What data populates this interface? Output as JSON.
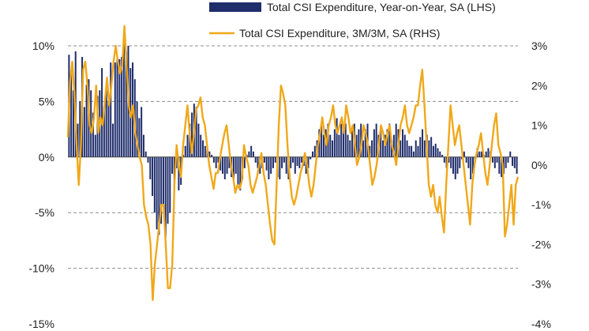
{
  "chart_data": {
    "type": "bar+line",
    "title": "",
    "xlabel": "",
    "ylabel_left": "",
    "ylabel_right": "",
    "ylim_left": [
      -15,
      10
    ],
    "yticks_left": [
      10,
      5,
      0,
      -5,
      -10,
      -15
    ],
    "ytick_labels_left": [
      "10%",
      "5%",
      "0%",
      "-5%",
      "-10%",
      "-15%"
    ],
    "ylim_right": [
      -4,
      3
    ],
    "yticks_right": [
      3,
      2,
      1,
      0,
      -1,
      -2,
      -3,
      -4
    ],
    "ytick_labels_right": [
      "3%",
      "2%",
      "1%",
      "0%",
      "-1%",
      "-2%",
      "-3%",
      "-4%"
    ],
    "grid": "horizontal dashed",
    "legend_position": "top",
    "series": [
      {
        "name": "Total CSI Expenditure, Year-on-Year, SA (LHS)",
        "type": "bar",
        "axis": "left",
        "color": "#1f2d6b",
        "values": [
          9.2,
          7.5,
          6.0,
          9.5,
          3.0,
          5.0,
          9.0,
          4.5,
          6.5,
          7.0,
          6.0,
          4.0,
          2.0,
          5.5,
          6.0,
          8.0,
          4.5,
          6.0,
          5.0,
          8.5,
          3.0,
          8.5,
          9.0,
          8.8,
          9.0,
          11.0,
          9.5,
          10.0,
          8.0,
          8.5,
          7.0,
          5.0,
          3.5,
          4.5,
          2.0,
          0.5,
          -0.5,
          -2.0,
          -3.5,
          -5.0,
          -6.5,
          -7.0,
          -6.0,
          -4.5,
          -7.2,
          -6.0,
          -5.0,
          -1.5,
          -3.0,
          -1.0,
          -3.0,
          -2.5,
          0.2,
          1.0,
          2.0,
          3.0,
          4.0,
          4.8,
          4.5,
          3.0,
          2.0,
          1.5,
          1.0,
          0.8,
          0.5,
          0.2,
          -0.5,
          -1.0,
          -0.5,
          -1.2,
          -1.5,
          -2.0,
          -1.5,
          -1.0,
          -1.8,
          -2.0,
          -1.5,
          -2.5,
          -3.0,
          -2.0,
          -1.0,
          0.2,
          0.5,
          1.0,
          0.5,
          -0.5,
          -1.0,
          -1.5,
          -1.0,
          -0.5,
          -1.2,
          -2.0,
          -1.5,
          -1.0,
          -0.5,
          -1.8,
          -2.0,
          -1.0,
          -0.5,
          -1.5,
          -2.0,
          -1.0,
          -0.5,
          -1.5,
          -0.8,
          -1.0,
          -0.5,
          -0.8,
          -1.5,
          -1.0,
          -0.2,
          0.5,
          1.0,
          1.5,
          2.5,
          2.8,
          2.0,
          2.5,
          3.0,
          2.0,
          1.5,
          2.5,
          3.5,
          2.0,
          3.0,
          2.5,
          3.0,
          2.0,
          1.5,
          2.5,
          3.0,
          2.0,
          2.5,
          3.0,
          1.5,
          2.5,
          3.0,
          1.0,
          1.5,
          2.5,
          3.0,
          2.0,
          2.8,
          1.5,
          2.0,
          2.5,
          3.0,
          1.5,
          2.0,
          3.0,
          2.5,
          1.5,
          2.5,
          2.0,
          1.5,
          1.0,
          1.0,
          0.5,
          1.5,
          1.0,
          1.8,
          2.5,
          1.5,
          2.0,
          1.5,
          1.8,
          1.0,
          1.2,
          0.8,
          0.5,
          0.2,
          -0.5,
          -1.0,
          -0.5,
          -1.0,
          -1.5,
          -2.0,
          -1.5,
          -1.0,
          -0.2,
          0.5,
          -0.5,
          -1.0,
          -2.0,
          -1.5,
          -0.5,
          0.8,
          0.5,
          0.5,
          0.2,
          0.5,
          0.8,
          0.5,
          -0.5,
          -1.0,
          -0.5,
          -1.5,
          -1.8,
          -1.5,
          -1.0,
          -0.5,
          0.5,
          -0.8,
          -1.0,
          -1.5
        ]
      },
      {
        "name": "Total CSI Expenditure, 3M/3M, SA (RHS)",
        "type": "line",
        "axis": "right",
        "color": "#f0a81a",
        "values": [
          0.7,
          2.1,
          2.6,
          1.8,
          0.5,
          -0.5,
          0.5,
          2.4,
          2.6,
          2.0,
          1.0,
          0.8,
          1.2,
          2.0,
          0.8,
          1.2,
          1.0,
          1.6,
          2.2,
          1.5,
          2.0,
          2.6,
          3.0,
          2.6,
          2.3,
          2.5,
          3.5,
          2.5,
          1.5,
          1.2,
          1.5,
          0.8,
          0.5,
          0.2,
          0.0,
          -1.0,
          -1.3,
          -1.5,
          -2.0,
          -3.4,
          -2.5,
          -2.0,
          -1.5,
          -1.0,
          -1.0,
          -2.0,
          -3.1,
          -3.1,
          -2.5,
          -0.5,
          0.5,
          0.0,
          -0.3,
          0.5,
          1.0,
          1.5,
          0.8,
          0.3,
          0.8,
          1.4,
          1.5,
          1.7,
          1.2,
          1.0,
          0.5,
          0.0,
          -0.3,
          -0.6,
          -0.2,
          -0.2,
          0.2,
          0.5,
          0.8,
          1.0,
          0.5,
          0.0,
          -0.3,
          -0.7,
          -0.5,
          -0.6,
          -0.4,
          0.5,
          0.2,
          0.0,
          -0.5,
          -0.7,
          -0.5,
          -0.3,
          0.0,
          0.3,
          -0.2,
          -0.5,
          -1.0,
          -1.5,
          -1.9,
          -2.0,
          -0.5,
          1.0,
          2.0,
          1.8,
          1.5,
          0.5,
          -0.3,
          -0.8,
          -1.0,
          -0.8,
          -0.5,
          -0.2,
          0.0,
          0.3,
          0.0,
          -0.5,
          -0.8,
          -0.5,
          0.0,
          0.5,
          0.8,
          1.2,
          0.8,
          0.5,
          1.0,
          1.2,
          1.5,
          1.0,
          0.8,
          1.0,
          1.2,
          0.8,
          1.5,
          1.2,
          0.8,
          1.0,
          0.5,
          0.0,
          0.2,
          0.5,
          1.0,
          0.8,
          0.5,
          0.0,
          -0.5,
          -0.3,
          0.0,
          0.5,
          1.0,
          0.8,
          0.5,
          0.8,
          1.0,
          0.5,
          0.3,
          0.0,
          0.5,
          1.0,
          1.2,
          1.5,
          1.0,
          0.8,
          1.0,
          1.2,
          1.5,
          1.5,
          2.0,
          2.4,
          1.5,
          0.5,
          -0.5,
          -0.8,
          -0.5,
          -1.0,
          -1.2,
          -0.8,
          -1.3,
          -1.7,
          -0.5,
          0.5,
          1.5,
          1.0,
          0.5,
          0.8,
          1.0,
          0.5,
          0.0,
          -0.5,
          -1.0,
          -1.5,
          -0.5,
          0.0,
          0.3,
          0.5,
          0.8,
          0.3,
          -0.2,
          -0.5,
          0.0,
          0.5,
          1.0,
          1.3,
          0.5,
          0.3,
          0.0,
          -1.8,
          -1.5,
          -1.0,
          -0.5,
          -1.5,
          -0.5,
          -0.3
        ]
      }
    ]
  }
}
